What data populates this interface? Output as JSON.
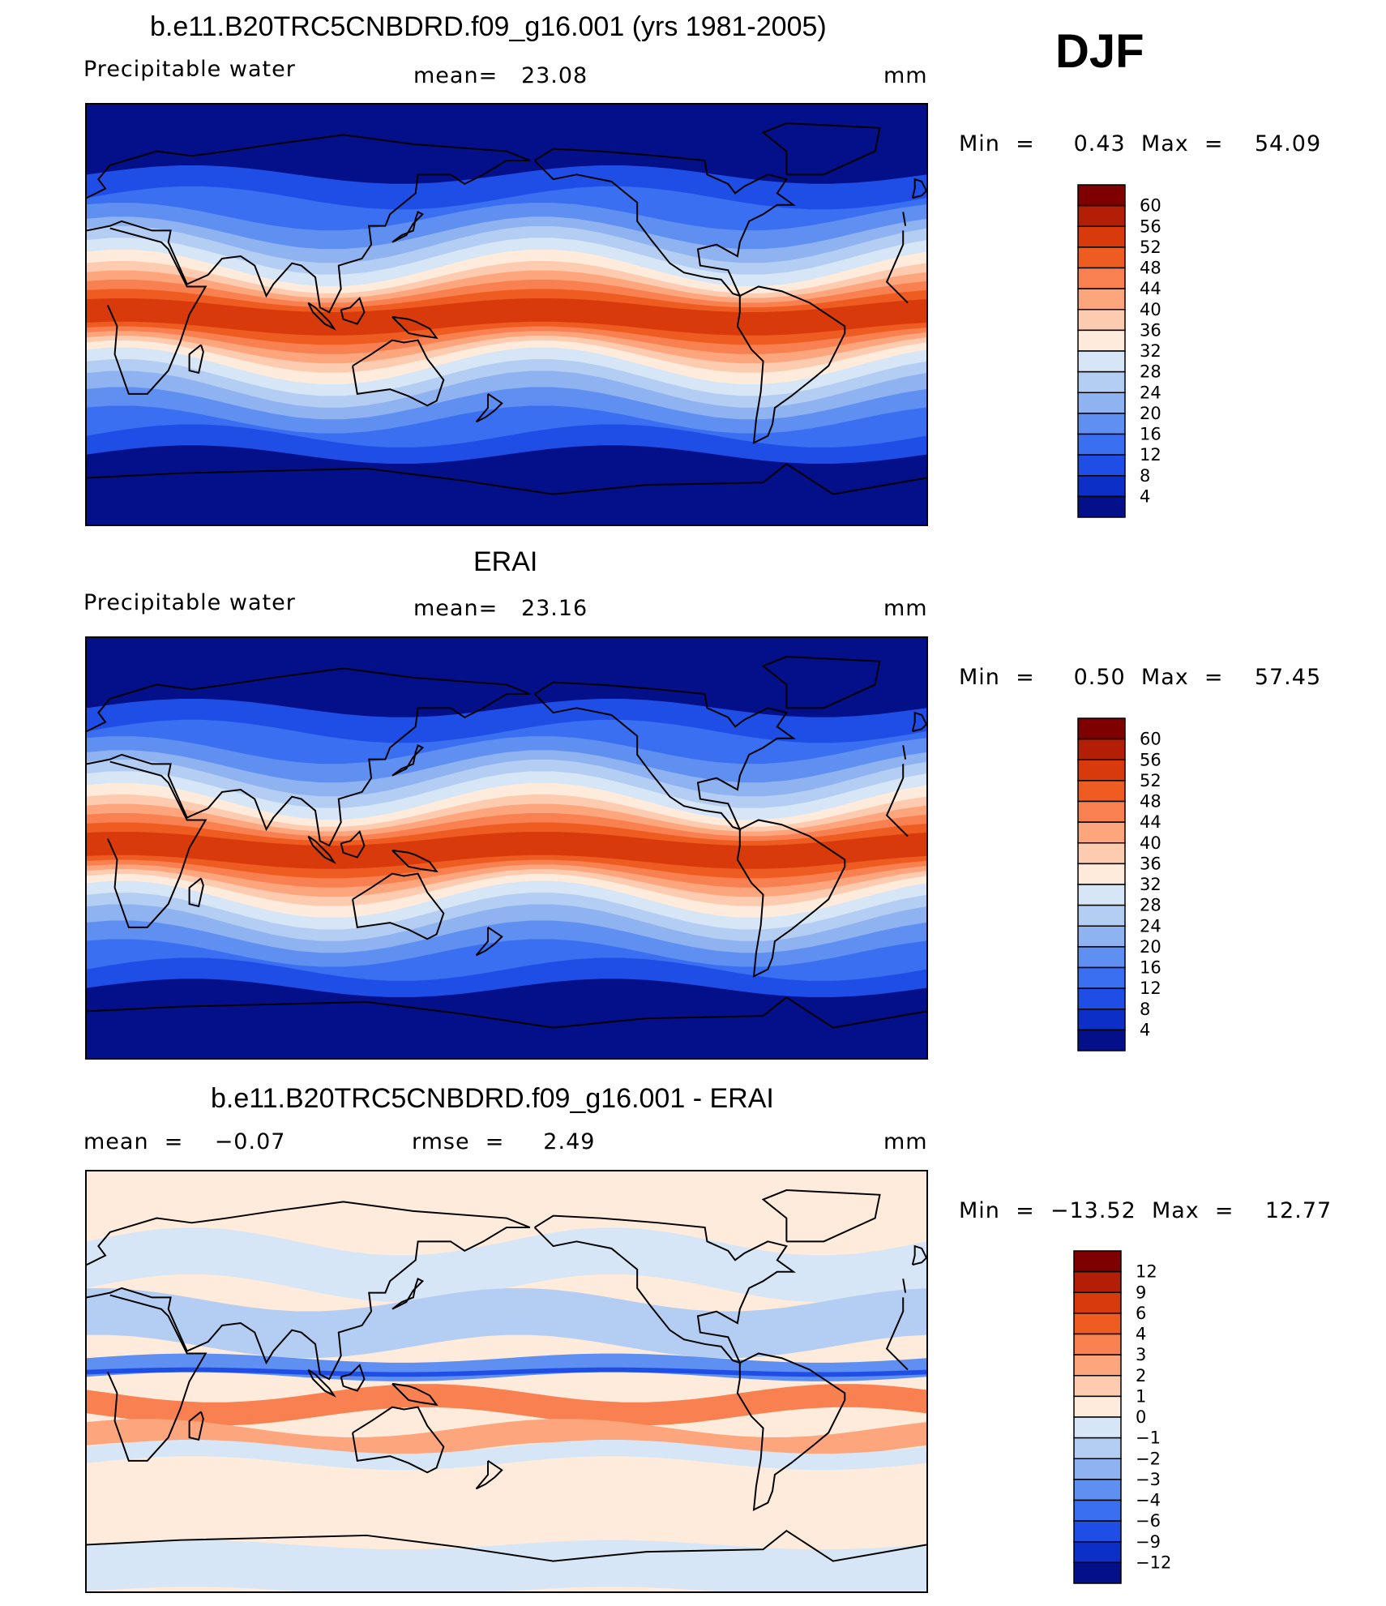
{
  "season": "DJF",
  "chart_data": [
    {
      "type": "heatmap",
      "title": "b.e11.B20TRC5CNBDRD.f09_g16.001 (yrs 1981-2005)",
      "variable": "Precipitable water",
      "stat_text": "mean=   23.08",
      "units": "mm",
      "minmax_text": "Min  =     0.43  Max  =    54.09",
      "min": 0.43,
      "max": 54.09,
      "mean": 23.08,
      "field_kind": "model",
      "colorbar": {
        "labels": [
          "60",
          "56",
          "52",
          "48",
          "44",
          "40",
          "36",
          "32",
          "28",
          "24",
          "20",
          "16",
          "12",
          "8",
          "4"
        ],
        "colors": [
          "#7f0000",
          "#b31e06",
          "#d93a0b",
          "#ef5c22",
          "#f98050",
          "#fda67e",
          "#fdcbb0",
          "#feebdb",
          "#d6e6f6",
          "#b3cdf3",
          "#8fb2f0",
          "#5f8ff0",
          "#3a6ff2",
          "#1f4ee6",
          "#0c2fc8",
          "#03108a"
        ]
      },
      "xlim": [
        0,
        360
      ],
      "ylim": [
        -90,
        90
      ]
    },
    {
      "type": "heatmap",
      "title": "ERAI",
      "variable": "Precipitable water",
      "stat_text": "mean=   23.16",
      "units": "mm",
      "minmax_text": "Min  =     0.50  Max  =    57.45",
      "min": 0.5,
      "max": 57.45,
      "mean": 23.16,
      "field_kind": "obs",
      "colorbar": {
        "labels": [
          "60",
          "56",
          "52",
          "48",
          "44",
          "40",
          "36",
          "32",
          "28",
          "24",
          "20",
          "16",
          "12",
          "8",
          "4"
        ],
        "colors": [
          "#7f0000",
          "#b31e06",
          "#d93a0b",
          "#ef5c22",
          "#f98050",
          "#fda67e",
          "#fdcbb0",
          "#feebdb",
          "#d6e6f6",
          "#b3cdf3",
          "#8fb2f0",
          "#5f8ff0",
          "#3a6ff2",
          "#1f4ee6",
          "#0c2fc8",
          "#03108a"
        ]
      },
      "xlim": [
        0,
        360
      ],
      "ylim": [
        -90,
        90
      ]
    },
    {
      "type": "heatmap",
      "title": "b.e11.B20TRC5CNBDRD.f09_g16.001 - ERAI",
      "stat_text": "mean  =    −0.07",
      "stat2_text": "rmse  =     2.49",
      "units": "mm",
      "minmax_text": "Min  =  −13.52  Max  =    12.77",
      "min": -13.52,
      "max": 12.77,
      "mean": -0.07,
      "rmse": 2.49,
      "field_kind": "diff",
      "colorbar": {
        "labels": [
          "12",
          "9",
          "6",
          "4",
          "3",
          "2",
          "1",
          "0",
          "−1",
          "−2",
          "−3",
          "−4",
          "−6",
          "−9",
          "−12"
        ],
        "colors": [
          "#7f0000",
          "#b31e06",
          "#d93a0b",
          "#ef5c22",
          "#f98050",
          "#fda67e",
          "#fdcbb0",
          "#feebdb",
          "#d6e6f6",
          "#b3cdf3",
          "#8fb2f0",
          "#5f8ff0",
          "#3a6ff2",
          "#1f4ee6",
          "#0c2fc8",
          "#03108a"
        ]
      },
      "xlim": [
        0,
        360
      ],
      "ylim": [
        -90,
        90
      ]
    }
  ]
}
